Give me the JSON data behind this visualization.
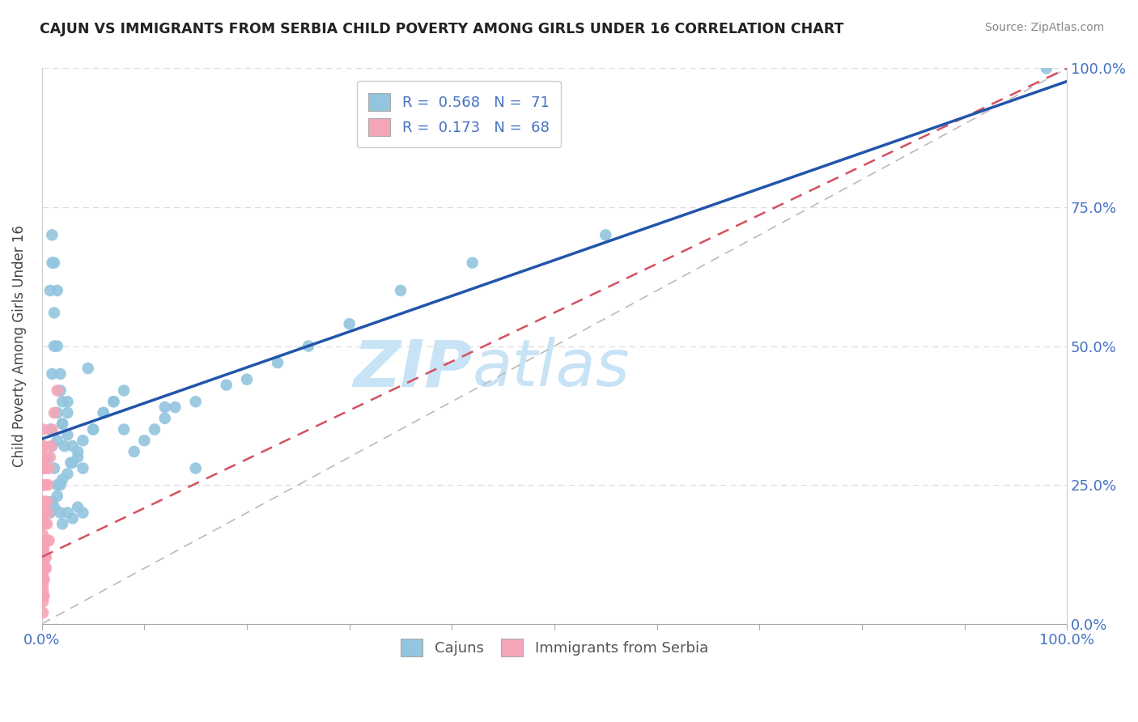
{
  "title": "CAJUN VS IMMIGRANTS FROM SERBIA CHILD POVERTY AMONG GIRLS UNDER 16 CORRELATION CHART",
  "source": "Source: ZipAtlas.com",
  "ylabel": "Child Poverty Among Girls Under 16",
  "series": [
    {
      "name": "Cajuns",
      "R": 0.568,
      "N": 71,
      "color": "#92c5de",
      "line_color": "#2255aa",
      "line_style": "solid",
      "x": [
        0.005,
        0.008,
        0.01,
        0.012,
        0.015,
        0.018,
        0.02,
        0.022,
        0.025,
        0.028,
        0.01,
        0.012,
        0.015,
        0.018,
        0.02,
        0.025,
        0.03,
        0.035,
        0.04,
        0.045,
        0.008,
        0.01,
        0.012,
        0.015,
        0.018,
        0.02,
        0.025,
        0.01,
        0.012,
        0.015,
        0.05,
        0.06,
        0.07,
        0.08,
        0.09,
        0.1,
        0.11,
        0.12,
        0.13,
        0.15,
        0.015,
        0.02,
        0.025,
        0.03,
        0.035,
        0.04,
        0.05,
        0.06,
        0.07,
        0.08,
        0.008,
        0.01,
        0.012,
        0.015,
        0.018,
        0.02,
        0.025,
        0.03,
        0.035,
        0.04,
        0.12,
        0.15,
        0.18,
        0.2,
        0.23,
        0.26,
        0.3,
        0.35,
        0.42,
        0.55,
        0.98
      ],
      "y": [
        0.3,
        0.35,
        0.32,
        0.28,
        0.33,
        0.25,
        0.36,
        0.32,
        0.34,
        0.29,
        0.45,
        0.5,
        0.38,
        0.42,
        0.36,
        0.4,
        0.32,
        0.3,
        0.28,
        0.46,
        0.6,
        0.65,
        0.56,
        0.5,
        0.45,
        0.4,
        0.38,
        0.7,
        0.65,
        0.6,
        0.35,
        0.38,
        0.4,
        0.42,
        0.31,
        0.33,
        0.35,
        0.37,
        0.39,
        0.28,
        0.25,
        0.26,
        0.27,
        0.29,
        0.31,
        0.33,
        0.35,
        0.38,
        0.4,
        0.35,
        0.2,
        0.22,
        0.21,
        0.23,
        0.2,
        0.18,
        0.2,
        0.19,
        0.21,
        0.2,
        0.39,
        0.4,
        0.43,
        0.44,
        0.47,
        0.5,
        0.54,
        0.6,
        0.65,
        0.7,
        1.0
      ]
    },
    {
      "name": "Immigrants from Serbia",
      "R": 0.173,
      "N": 68,
      "color": "#f4a6b8",
      "line_color": "#d45060",
      "line_style": "dashed",
      "x": [
        0.001,
        0.001,
        0.001,
        0.001,
        0.002,
        0.002,
        0.002,
        0.002,
        0.002,
        0.002,
        0.001,
        0.001,
        0.001,
        0.001,
        0.001,
        0.002,
        0.002,
        0.002,
        0.002,
        0.003,
        0.001,
        0.001,
        0.001,
        0.001,
        0.002,
        0.002,
        0.002,
        0.003,
        0.003,
        0.003,
        0.001,
        0.001,
        0.001,
        0.001,
        0.001,
        0.001,
        0.001,
        0.001,
        0.001,
        0.002,
        0.002,
        0.002,
        0.003,
        0.003,
        0.004,
        0.004,
        0.005,
        0.005,
        0.006,
        0.007,
        0.001,
        0.001,
        0.001,
        0.001,
        0.001,
        0.002,
        0.002,
        0.002,
        0.002,
        0.002,
        0.005,
        0.006,
        0.007,
        0.008,
        0.009,
        0.01,
        0.012,
        0.015
      ],
      "y": [
        0.05,
        0.08,
        0.1,
        0.12,
        0.08,
        0.1,
        0.12,
        0.15,
        0.18,
        0.2,
        0.15,
        0.18,
        0.2,
        0.22,
        0.25,
        0.15,
        0.18,
        0.2,
        0.22,
        0.18,
        0.28,
        0.3,
        0.32,
        0.35,
        0.28,
        0.3,
        0.32,
        0.25,
        0.28,
        0.3,
        0.02,
        0.04,
        0.06,
        0.08,
        0.1,
        0.12,
        0.14,
        0.16,
        0.18,
        0.05,
        0.08,
        0.1,
        0.12,
        0.15,
        0.1,
        0.12,
        0.15,
        0.18,
        0.2,
        0.15,
        0.05,
        0.06,
        0.07,
        0.08,
        0.09,
        0.1,
        0.11,
        0.12,
        0.13,
        0.14,
        0.22,
        0.25,
        0.28,
        0.3,
        0.32,
        0.35,
        0.38,
        0.42
      ]
    }
  ],
  "watermark_zip": "ZIP",
  "watermark_atlas": "atlas",
  "watermark_color": "#c8e3f5",
  "background_color": "#ffffff",
  "grid_color": "#dddddd",
  "title_color": "#222222",
  "source_color": "#888888",
  "tick_color": "#4472c4",
  "legend_text_color": "#4472c4"
}
